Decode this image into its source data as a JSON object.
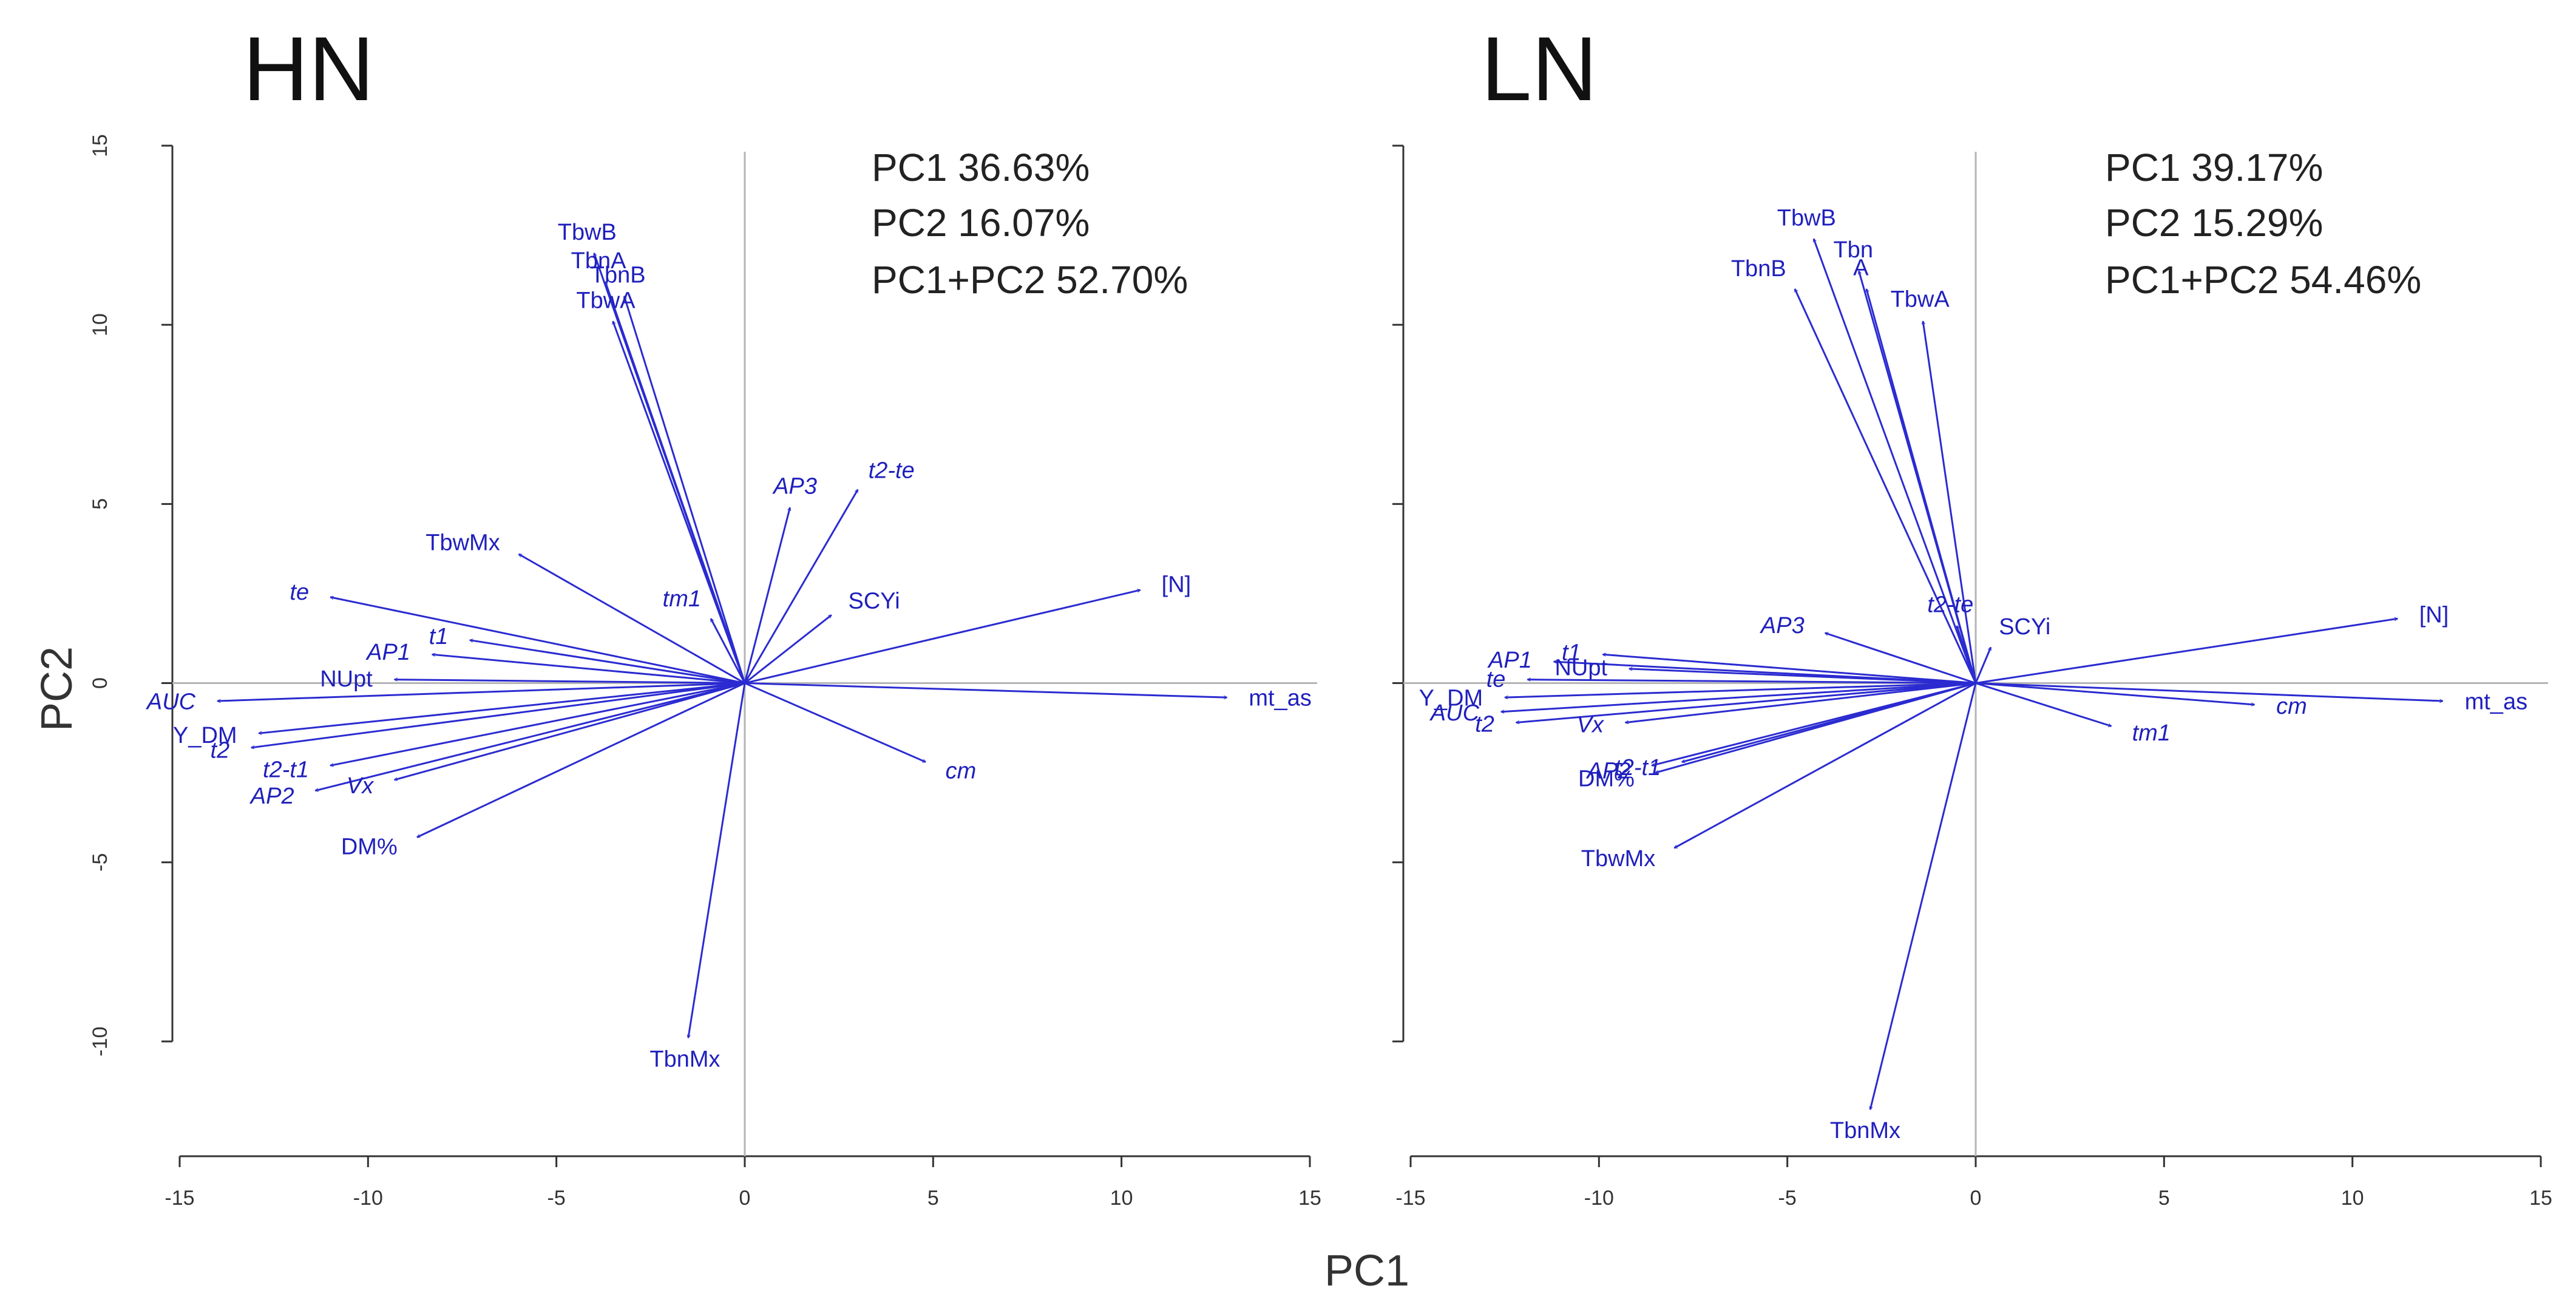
{
  "figure": {
    "xlabel": "PC1",
    "ylabel": "PC2"
  },
  "chart_data": [
    {
      "type": "biplot",
      "title": "HN",
      "xlim": [
        -15,
        15
      ],
      "ylim": [
        -13,
        15
      ],
      "xticks": [
        -15,
        -10,
        -5,
        0,
        5,
        10,
        15
      ],
      "yticks": [
        -10,
        -5,
        0,
        5,
        10,
        15
      ],
      "variance_lines": [
        "PC1 36.63%",
        "PC2 16.07%",
        "PC1+PC2 52.70%"
      ],
      "color": "#2b2bd1",
      "vectors": [
        {
          "label": "TbwB",
          "x": -4.0,
          "y": 12.0,
          "italic": false
        },
        {
          "label": "TbnB",
          "x": -3.2,
          "y": 10.8,
          "italic": false
        },
        {
          "label": "TbnA",
          "x": -3.7,
          "y": 11.2,
          "italic": false
        },
        {
          "label": "TbwA",
          "x": -3.5,
          "y": 10.1,
          "italic": false
        },
        {
          "label": "TbwMx",
          "x": -6.0,
          "y": 3.6,
          "italic": false
        },
        {
          "label": "te",
          "x": -11.0,
          "y": 2.4,
          "italic": true
        },
        {
          "label": "AP3",
          "x": 1.2,
          "y": 4.9,
          "italic": true
        },
        {
          "label": "t2-te",
          "x": 3.0,
          "y": 5.4,
          "italic": true
        },
        {
          "label": "tm1",
          "x": -0.9,
          "y": 1.8,
          "italic": true
        },
        {
          "label": "SCYi",
          "x": 2.3,
          "y": 1.9,
          "italic": false
        },
        {
          "label": "[N]",
          "x": 10.5,
          "y": 2.6,
          "italic": false
        },
        {
          "label": "AP1",
          "x": -8.3,
          "y": 0.8,
          "italic": true
        },
        {
          "label": "t1",
          "x": -7.3,
          "y": 1.2,
          "italic": true
        },
        {
          "label": "NUpt",
          "x": -9.3,
          "y": 0.1,
          "italic": false
        },
        {
          "label": "AUC",
          "x": -14.0,
          "y": -0.5,
          "italic": true
        },
        {
          "label": "Y_DM",
          "x": -12.9,
          "y": -1.4,
          "italic": false
        },
        {
          "label": "t2",
          "x": -13.1,
          "y": -1.8,
          "italic": true
        },
        {
          "label": "t2-t1",
          "x": -11.0,
          "y": -2.3,
          "italic": true
        },
        {
          "label": "AP2",
          "x": -11.4,
          "y": -3.0,
          "italic": true
        },
        {
          "label": "Vx",
          "x": -9.3,
          "y": -2.7,
          "italic": true
        },
        {
          "label": "DM%",
          "x": -8.7,
          "y": -4.3,
          "italic": false
        },
        {
          "label": "mt_as",
          "x": 12.8,
          "y": -0.4,
          "italic": false
        },
        {
          "label": "cm",
          "x": 4.8,
          "y": -2.2,
          "italic": true
        },
        {
          "label": "TbnMx",
          "x": -1.5,
          "y": -9.9,
          "italic": false
        }
      ]
    },
    {
      "type": "biplot",
      "title": "LN",
      "xlim": [
        -15,
        15
      ],
      "ylim": [
        -13,
        15
      ],
      "xticks": [
        -15,
        -10,
        -5,
        0,
        5,
        10,
        15
      ],
      "yticks": [
        -10,
        -5,
        0,
        5,
        10,
        15
      ],
      "variance_lines": [
        "PC1 39.17%",
        "PC2 15.29%",
        "PC1+PC2 54.46%"
      ],
      "color": "#2b2bd1",
      "vectors": [
        {
          "label": "TbwB",
          "x": -4.3,
          "y": 12.4,
          "italic": false
        },
        {
          "label": "Tbn",
          "x": -3.1,
          "y": 11.5,
          "italic": false
        },
        {
          "label": "A",
          "x": -2.9,
          "y": 11.0,
          "italic": false
        },
        {
          "label": "TbnB",
          "x": -4.8,
          "y": 11.0,
          "italic": false
        },
        {
          "label": "TbwA",
          "x": -1.4,
          "y": 10.1,
          "italic": false
        },
        {
          "label": "AP3",
          "x": -4.0,
          "y": 1.4,
          "italic": true
        },
        {
          "label": "t2-te",
          "x": -0.5,
          "y": 1.6,
          "italic": true
        },
        {
          "label": "SCYi",
          "x": 0.4,
          "y": 1.0,
          "italic": false
        },
        {
          "label": "[N]",
          "x": 11.2,
          "y": 1.8,
          "italic": false
        },
        {
          "label": "AP1",
          "x": -11.2,
          "y": 0.6,
          "italic": true
        },
        {
          "label": "t1",
          "x": -9.9,
          "y": 0.8,
          "italic": true
        },
        {
          "label": "NUpt",
          "x": -9.2,
          "y": 0.4,
          "italic": false
        },
        {
          "label": "te",
          "x": -11.9,
          "y": 0.1,
          "italic": true
        },
        {
          "label": "Y_DM",
          "x": -12.5,
          "y": -0.4,
          "italic": false
        },
        {
          "label": "AUC",
          "x": -12.6,
          "y": -0.8,
          "italic": true
        },
        {
          "label": "t2",
          "x": -12.2,
          "y": -1.1,
          "italic": true
        },
        {
          "label": "Vx",
          "x": -9.3,
          "y": -1.1,
          "italic": true
        },
        {
          "label": "AP2",
          "x": -8.6,
          "y": -2.3,
          "italic": true
        },
        {
          "label": "t2-t1",
          "x": -7.8,
          "y": -2.2,
          "italic": true
        },
        {
          "label": "DM%",
          "x": -8.5,
          "y": -2.5,
          "italic": false
        },
        {
          "label": "TbwMx",
          "x": -8.0,
          "y": -4.6,
          "italic": false
        },
        {
          "label": "tm1",
          "x": 3.6,
          "y": -1.2,
          "italic": true
        },
        {
          "label": "cm",
          "x": 7.4,
          "y": -0.6,
          "italic": true
        },
        {
          "label": "mt_as",
          "x": 12.4,
          "y": -0.5,
          "italic": false
        },
        {
          "label": "TbnMx",
          "x": -2.8,
          "y": -11.9,
          "italic": false
        }
      ]
    }
  ]
}
